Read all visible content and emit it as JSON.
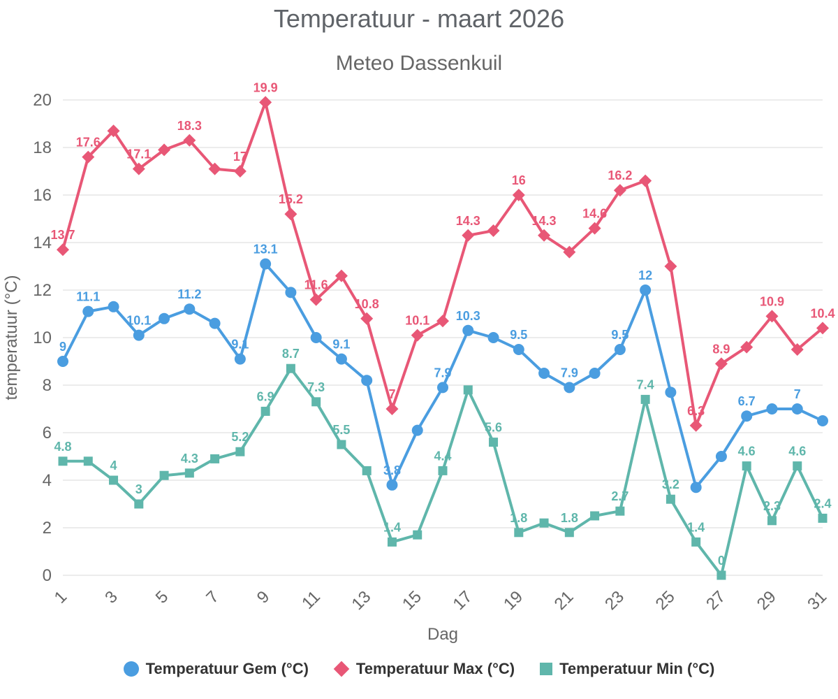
{
  "chart_data": {
    "type": "line",
    "title": "Temperatuur - maart 2026",
    "subtitle": "Meteo Dassenkuil",
    "xlabel": "Dag",
    "ylabel": "temperatuur (°C)",
    "ylim": [
      0,
      20
    ],
    "y_ticks": [
      0,
      2,
      4,
      6,
      8,
      10,
      12,
      14,
      16,
      18,
      20
    ],
    "x": [
      1,
      2,
      3,
      4,
      5,
      6,
      7,
      8,
      9,
      10,
      11,
      12,
      13,
      14,
      15,
      16,
      17,
      18,
      19,
      20,
      21,
      22,
      23,
      24,
      25,
      26,
      27,
      28,
      29,
      30,
      31
    ],
    "x_tick_labels": [
      "1",
      "3",
      "5",
      "7",
      "9",
      "11",
      "13",
      "15",
      "17",
      "19",
      "21",
      "23",
      "25",
      "27",
      "29",
      "31"
    ],
    "grid": "horizontal",
    "legend_position": "bottom",
    "grid_color": "#e6e6e6",
    "axis_text_color": "#666666",
    "series": [
      {
        "name": "Temperatuur Gem (°C)",
        "color": "#4a9de0",
        "marker": "circle",
        "values": [
          9,
          11.1,
          11.3,
          10.1,
          10.8,
          11.2,
          10.6,
          9.1,
          13.1,
          11.9,
          10,
          9.1,
          8.2,
          3.8,
          6.1,
          7.9,
          10.3,
          10,
          9.5,
          8.5,
          7.9,
          8.5,
          9.5,
          12,
          7.7,
          3.7,
          5,
          6.7,
          7,
          7,
          6.5
        ],
        "labels": [
          "9",
          "11.1",
          null,
          "10.1",
          null,
          "11.2",
          null,
          "9.1",
          "13.1",
          null,
          null,
          "9.1",
          null,
          "3.8",
          null,
          "7.9",
          "10.3",
          null,
          "9.5",
          null,
          "7.9",
          null,
          "9.5",
          "12",
          null,
          null,
          null,
          "6.7",
          null,
          "7",
          null
        ]
      },
      {
        "name": "Temperatuur Max (°C)",
        "color": "#e85776",
        "marker": "diamond",
        "values": [
          13.7,
          17.6,
          18.7,
          17.1,
          17.9,
          18.3,
          17.1,
          17,
          19.9,
          15.2,
          11.6,
          12.6,
          10.8,
          7,
          10.1,
          10.7,
          14.3,
          14.5,
          16,
          14.3,
          13.6,
          14.6,
          16.2,
          16.6,
          13,
          6.3,
          8.9,
          9.6,
          10.9,
          9.5,
          10.4
        ],
        "labels": [
          "13.7",
          "17.6",
          null,
          "17.1",
          null,
          "18.3",
          null,
          "17",
          "19.9",
          "15.2",
          "11.6",
          null,
          "10.8",
          "7",
          "10.1",
          null,
          "14.3",
          null,
          "16",
          "14.3",
          null,
          "14.6",
          "16.2",
          null,
          null,
          "6.3",
          "8.9",
          null,
          "10.9",
          null,
          "10.4"
        ]
      },
      {
        "name": "Temperatuur Min (°C)",
        "color": "#5fb6ab",
        "marker": "square",
        "values": [
          4.8,
          4.8,
          4,
          3,
          4.2,
          4.3,
          4.9,
          5.2,
          6.9,
          8.7,
          7.3,
          5.5,
          4.4,
          1.4,
          1.7,
          4.4,
          7.8,
          5.6,
          1.8,
          2.2,
          1.8,
          2.5,
          2.7,
          7.4,
          3.2,
          1.4,
          0,
          4.6,
          2.3,
          4.6,
          2.4
        ],
        "labels": [
          "4.8",
          null,
          "4",
          "3",
          null,
          "4.3",
          null,
          "5.2",
          "6.9",
          "8.7",
          "7.3",
          "5.5",
          null,
          "1.4",
          null,
          "4.4",
          null,
          "5.6",
          "1.8",
          null,
          "1.8",
          null,
          "2.7",
          "7.4",
          "3.2",
          "1.4",
          "0",
          "4.6",
          "2.3",
          "4.6",
          "2.4"
        ]
      }
    ]
  }
}
